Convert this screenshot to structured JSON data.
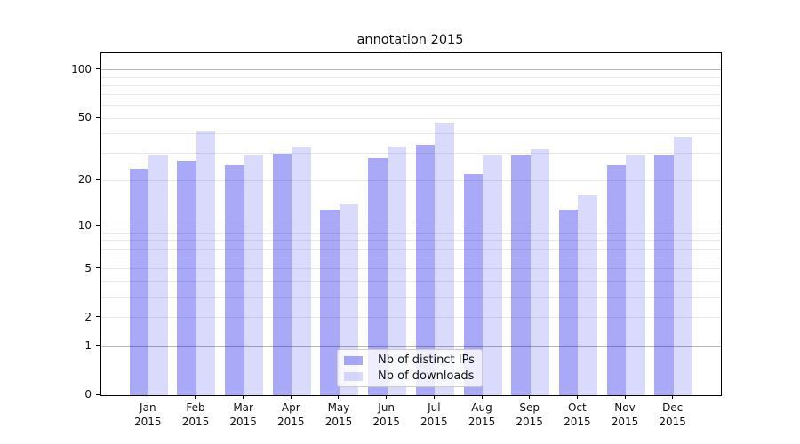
{
  "title": "annotation 2015",
  "chart_data": {
    "type": "bar",
    "title": "annotation 2015",
    "scale": "log1p",
    "categories": [
      "Jan",
      "Feb",
      "Mar",
      "Apr",
      "May",
      "Jun",
      "Jul",
      "Aug",
      "Sep",
      "Oct",
      "Nov",
      "Dec"
    ],
    "year": "2015",
    "series": [
      {
        "name": "Nb of distinct IPs",
        "color": "#0a0aeb59",
        "values": [
          24,
          27,
          25,
          30,
          13,
          28,
          34,
          22,
          29,
          13,
          25,
          29
        ]
      },
      {
        "name": "Nb of downloads",
        "color": "#0a0aeb26",
        "values": [
          29,
          41,
          29,
          33,
          14,
          33,
          46,
          29,
          32,
          16,
          29,
          38
        ]
      }
    ],
    "yticks": [
      0,
      1,
      2,
      5,
      10,
      20,
      50,
      100
    ],
    "ylim": [
      0,
      127
    ],
    "grid": {
      "major": [
        1,
        10,
        100
      ],
      "minor": [
        2,
        3,
        4,
        5,
        6,
        7,
        8,
        9,
        20,
        30,
        40,
        50,
        60,
        70,
        80,
        90
      ]
    },
    "legend_position": "lower center",
    "xlabel": "",
    "ylabel": ""
  },
  "colors": {
    "bar_distinct_ips": "#a7a7f5",
    "bar_downloads": "#dbdbfa",
    "grid_major": "#b5b5b5",
    "grid_minor": "#e9e9e9",
    "spine": "#000000",
    "background": "#ffffff"
  }
}
